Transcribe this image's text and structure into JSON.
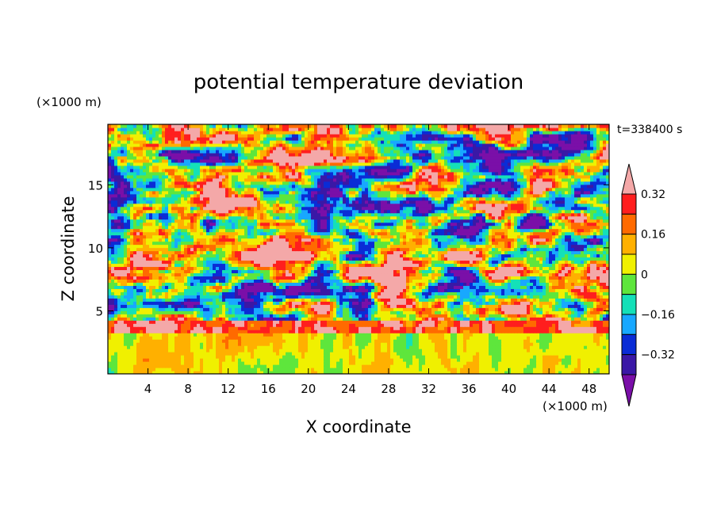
{
  "chart_data": {
    "type": "heatmap",
    "title": "potential temperature deviation",
    "xlabel": "X coordinate",
    "ylabel": "Z coordinate",
    "x_unit": "(×1000 m)",
    "y_unit": "(×1000 m)",
    "time_label": "t=338400 s",
    "xlim": [
      0,
      50
    ],
    "ylim": [
      0,
      19.8
    ],
    "x_ticks": [
      4,
      8,
      12,
      16,
      20,
      24,
      28,
      32,
      36,
      40,
      44,
      48
    ],
    "y_ticks": [
      5,
      10,
      15
    ],
    "colorbar": {
      "levels": [
        -0.4,
        -0.32,
        -0.24,
        -0.16,
        -0.08,
        0,
        0.08,
        0.16,
        0.24,
        0.32,
        0.4
      ],
      "tick_labels": [
        {
          "value": 0.32,
          "label": "0.32"
        },
        {
          "value": 0.16,
          "label": "0.16"
        },
        {
          "value": 0,
          "label": "0"
        },
        {
          "value": -0.16,
          "label": "-0.16"
        },
        {
          "value": -0.32,
          "label": "-0.32"
        }
      ],
      "colors": [
        "#7a0fa8",
        "#3a18a6",
        "#0a2cd6",
        "#18a8ff",
        "#14e0b8",
        "#5ee63c",
        "#f0f000",
        "#ffb000",
        "#ff6a00",
        "#ff1e1e",
        "#f4a8a8"
      ],
      "extend": "both"
    },
    "field_description_z_ranges": {
      "boundary_layer_top": 3.3
    }
  }
}
